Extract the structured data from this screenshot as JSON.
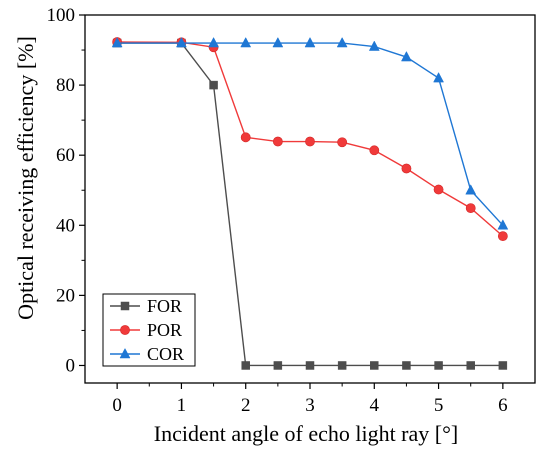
{
  "chart_data": {
    "type": "line",
    "xlabel": "Incident angle of echo light ray [°]",
    "ylabel": "Optical receiving efficiency [%]",
    "xlim": [
      -0.5,
      6.5
    ],
    "ylim": [
      -5,
      100
    ],
    "xticks": [
      0,
      1,
      2,
      3,
      4,
      5,
      6
    ],
    "yticks": [
      0,
      20,
      40,
      60,
      80,
      100
    ],
    "grid": false,
    "legend_position": "bottom-left",
    "series": [
      {
        "name": "FOR",
        "color": "#4d4d4d",
        "marker": "square",
        "x": [
          0,
          1,
          1.5,
          2,
          2.5,
          3,
          3.5,
          4,
          4.5,
          5,
          5.5,
          6
        ],
        "y": [
          92,
          92,
          80,
          0,
          0,
          0,
          0,
          0,
          0,
          0,
          0,
          0
        ]
      },
      {
        "name": "POR",
        "color": "#f03a3a",
        "marker": "circle",
        "x": [
          0,
          1,
          1.5,
          2,
          2.5,
          3,
          3.5,
          4,
          4.5,
          5,
          5.5,
          6
        ],
        "y": [
          92.3,
          92.2,
          90.8,
          65.1,
          63.9,
          63.9,
          63.7,
          61.4,
          56.2,
          50.2,
          44.9,
          36.9
        ]
      },
      {
        "name": "COR",
        "color": "#1f77d4",
        "marker": "triangle",
        "x": [
          0,
          1,
          1.5,
          2,
          2.5,
          3,
          3.5,
          4,
          4.5,
          5,
          5.5,
          6
        ],
        "y": [
          92,
          92,
          92,
          92,
          92,
          92,
          92,
          91,
          88,
          82,
          50,
          40
        ]
      }
    ]
  }
}
